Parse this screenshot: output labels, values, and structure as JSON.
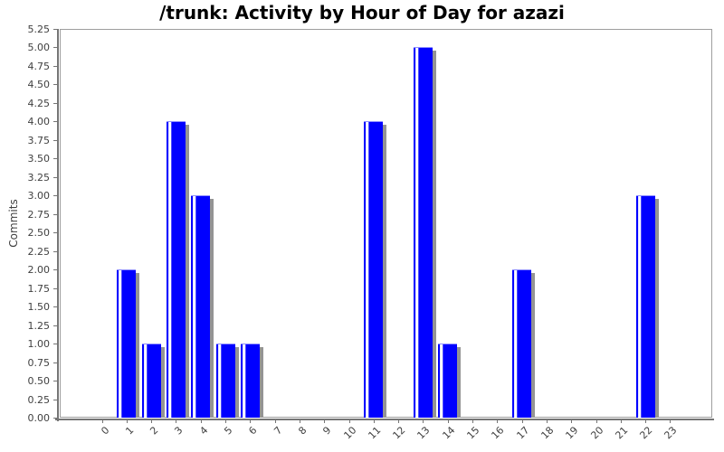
{
  "colors": {
    "bar": "#0000ff",
    "bar_highlight": "#ffffff",
    "bar_shadow": "#949494",
    "axis_line": "#757575",
    "plot_border": "#9e9e9e",
    "tick_label": "#3f3f3f",
    "title": "#000000",
    "background": "#ffffff"
  },
  "chart_data": {
    "type": "bar",
    "title": "/trunk: Activity by Hour of Day for azazi",
    "xlabel": "",
    "ylabel": "Commits",
    "categories": [
      "0",
      "1",
      "2",
      "3",
      "4",
      "5",
      "6",
      "7",
      "8",
      "9",
      "10",
      "11",
      "12",
      "13",
      "14",
      "15",
      "16",
      "17",
      "18",
      "19",
      "20",
      "21",
      "22",
      "23"
    ],
    "values": [
      0,
      2,
      1,
      4,
      3,
      1,
      1,
      0,
      0,
      0,
      0,
      4,
      0,
      5,
      1,
      0,
      0,
      2,
      0,
      0,
      0,
      0,
      3,
      0
    ],
    "ylim": [
      0,
      5.25
    ],
    "ytick_step": 0.25,
    "ytick_format_decimals": 2,
    "xtick_rotation": -45,
    "grid": false,
    "legend": null,
    "bar_style": "solid blue with left highlight stripe and gray drop shadow"
  }
}
